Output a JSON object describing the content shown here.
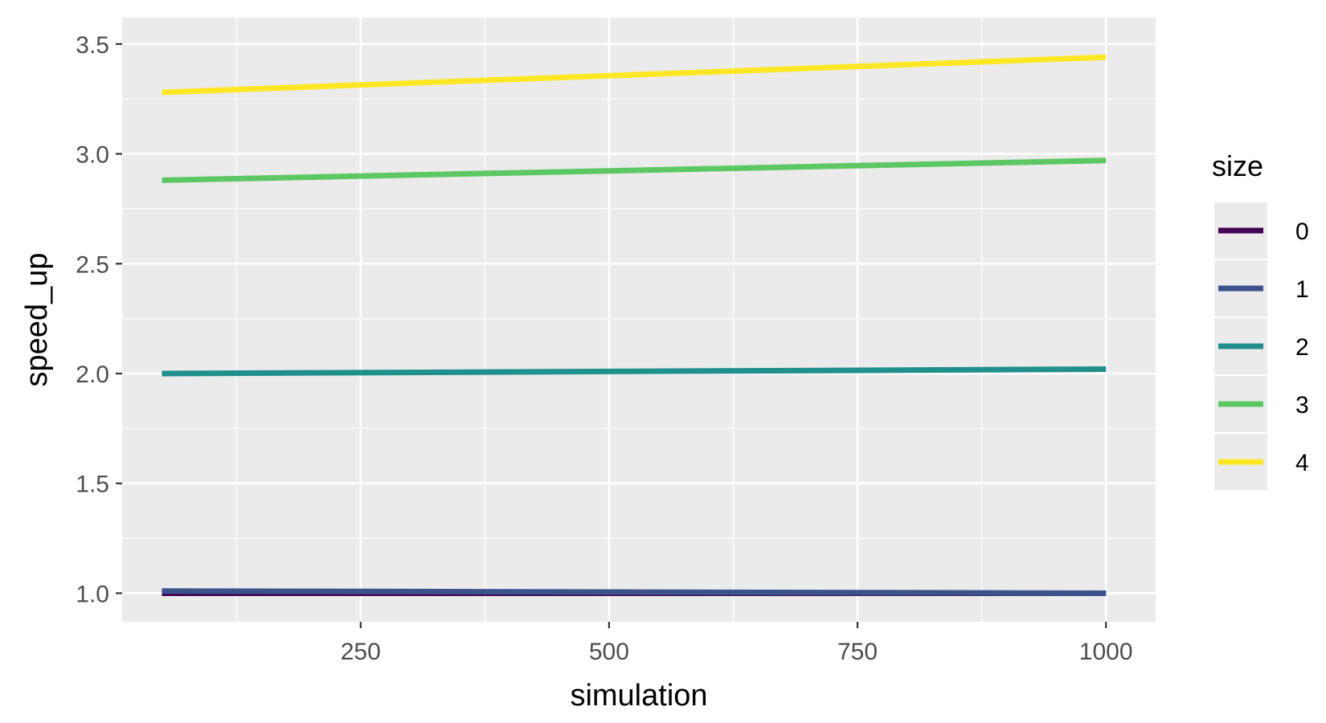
{
  "chart_data": {
    "type": "line",
    "xlabel": "simulation",
    "ylabel": "speed_up",
    "xlim": [
      10,
      1050
    ],
    "ylim": [
      0.87,
      3.62
    ],
    "x_ticks": [
      250,
      500,
      750,
      1000
    ],
    "x_tick_labels": [
      "250",
      "500",
      "750",
      "1000"
    ],
    "y_ticks": [
      1.0,
      1.5,
      2.0,
      2.5,
      3.0,
      3.5
    ],
    "y_tick_labels": [
      "1.0",
      "1.5",
      "2.0",
      "2.5",
      "3.0",
      "3.5"
    ],
    "grid": true,
    "legend": {
      "title": "size",
      "position": "right"
    },
    "series": [
      {
        "name": "0",
        "color": "#440154",
        "x": [
          50,
          1000
        ],
        "y": [
          1.0,
          1.0
        ]
      },
      {
        "name": "1",
        "color": "#3b528b",
        "x": [
          50,
          1000
        ],
        "y": [
          1.01,
          1.0
        ]
      },
      {
        "name": "2",
        "color": "#21908c",
        "x": [
          50,
          1000
        ],
        "y": [
          2.0,
          2.02
        ]
      },
      {
        "name": "3",
        "color": "#5dc863",
        "x": [
          50,
          1000
        ],
        "y": [
          2.88,
          2.97
        ]
      },
      {
        "name": "4",
        "color": "#fde725",
        "x": [
          50,
          1000
        ],
        "y": [
          3.28,
          3.44
        ]
      }
    ]
  }
}
